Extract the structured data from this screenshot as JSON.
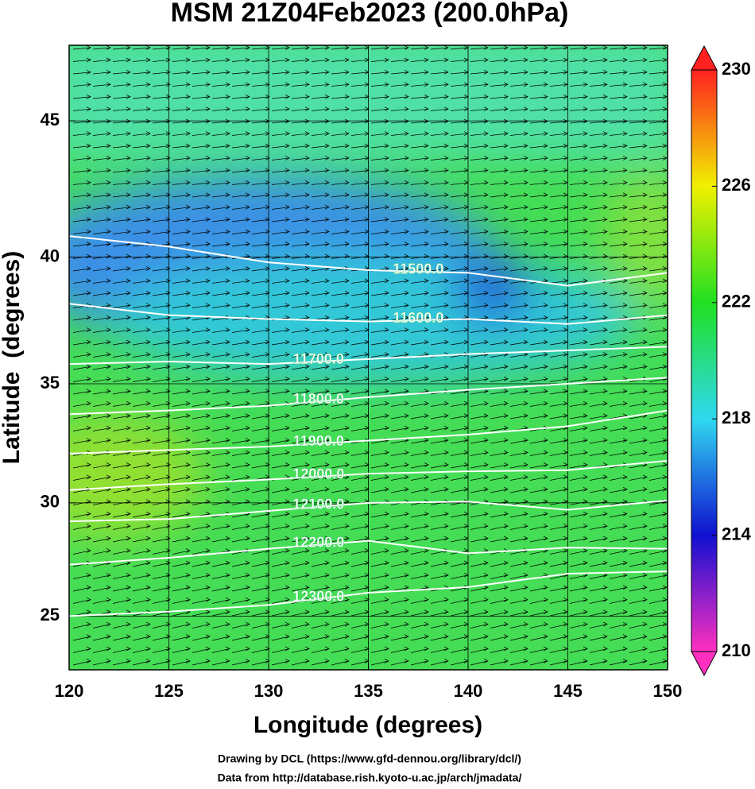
{
  "chart_data": {
    "type": "contour-map",
    "title": "MSM 21Z04Feb2023 (200.0hPa)",
    "x_label": "Longitude (degrees)",
    "y_label": "Latitude  (degrees)",
    "projection": "mercator",
    "xlim": [
      120,
      150
    ],
    "ylim": [
      22.55,
      47.6
    ],
    "xticks": [
      120,
      125,
      130,
      135,
      140,
      145,
      150
    ],
    "yticks": [
      25,
      30,
      35,
      40,
      45
    ],
    "grid": true,
    "contour_color": "#ffffff",
    "x": [
      120,
      125,
      130,
      135,
      140,
      145,
      150
    ],
    "contours": [
      {
        "level": {
          "value": 11500,
          "label": "11500.0"
        },
        "values": [
          40.8,
          40.4,
          39.8,
          39.5,
          39.4,
          38.9,
          39.4
        ]
      },
      {
        "level": {
          "value": 11600,
          "label": "11600.0"
        },
        "values": [
          38.2,
          37.75,
          37.6,
          37.5,
          37.6,
          37.4,
          37.75
        ]
      },
      {
        "level": {
          "value": 11700,
          "label": "11700.0"
        },
        "values": [
          35.8,
          35.9,
          35.8,
          36.0,
          36.2,
          36.35,
          36.5
        ]
      },
      {
        "level": {
          "value": 11800,
          "label": "11800.0"
        },
        "values": [
          33.75,
          33.9,
          34.1,
          34.45,
          34.75,
          35.0,
          35.25
        ]
      },
      {
        "level": {
          "value": 11900,
          "label": "11900.0"
        },
        "values": [
          32.1,
          32.25,
          32.4,
          32.65,
          32.9,
          33.25,
          33.9
        ]
      },
      {
        "level": {
          "value": 12000,
          "label": "12000.0"
        },
        "values": [
          30.55,
          30.8,
          31.0,
          31.25,
          31.35,
          31.4,
          31.8
        ]
      },
      {
        "level": {
          "value": 12100,
          "label": "12100.0"
        },
        "values": [
          29.2,
          29.3,
          29.65,
          30.0,
          30.05,
          29.7,
          30.1
        ]
      },
      {
        "level": {
          "value": 12200,
          "label": "12200.0"
        },
        "values": [
          27.3,
          27.6,
          28.0,
          28.35,
          27.8,
          28.05,
          28.0
        ]
      },
      {
        "level": {
          "value": 12300,
          "label": "12300.0"
        },
        "values": [
          25.0,
          25.2,
          25.5,
          26.05,
          26.3,
          26.9,
          27.0
        ]
      }
    ],
    "colorbar": {
      "lim": [
        210,
        230
      ],
      "ticks": [
        210,
        214,
        218,
        222,
        226,
        230
      ],
      "colors": [
        "#ff30c0",
        "#1010d0",
        "#30d8f0",
        "#20e020",
        "#f0f000",
        "#ff2020"
      ]
    },
    "credits": [
      "Drawing by DCL (https://www.gfd-dennou.org/library/dcl/)",
      "Data from http://database.rish.kyoto-u.ac.jp/arch/jmadata/"
    ]
  }
}
